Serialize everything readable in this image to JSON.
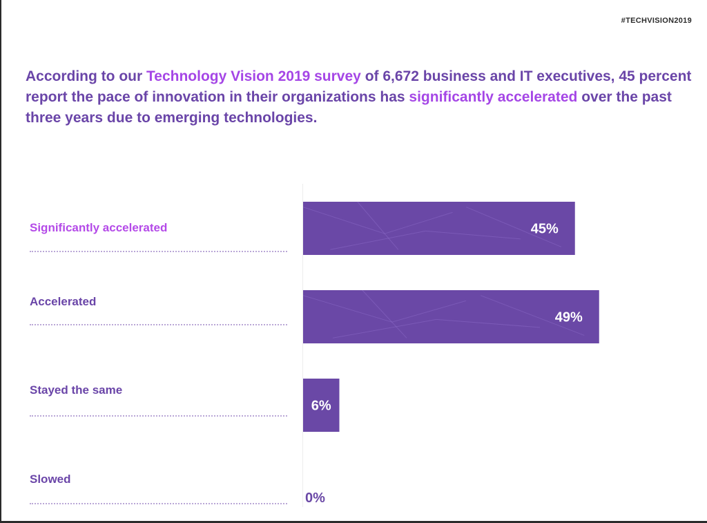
{
  "header": {
    "hashtag": "#TECHVISION2019"
  },
  "headline": {
    "part1": "According to our ",
    "highlight1": "Technology Vision 2019 survey",
    "part2": " of 6,672 business and IT executives, 45 percent report the pace of innovation in their organizations has ",
    "highlight2": "significantly accelerated",
    "part3": " over the past three years due to emerging technologies."
  },
  "colors": {
    "bar": "#6a48a6",
    "label": "#6a45a8",
    "highlight": "#a546e6",
    "zero_label": "#6a48a6"
  },
  "chart_data": {
    "type": "bar",
    "orientation": "horizontal",
    "categories": [
      "Significantly accelerated",
      "Accelerated",
      "Stayed the same",
      "Slowed"
    ],
    "values": [
      45,
      49,
      6,
      0
    ],
    "value_labels": [
      "45%",
      "49%",
      "6%",
      "0%"
    ],
    "highlighted_category": "Significantly accelerated",
    "xlim": [
      0,
      100
    ],
    "grid": false,
    "legend": "none"
  }
}
